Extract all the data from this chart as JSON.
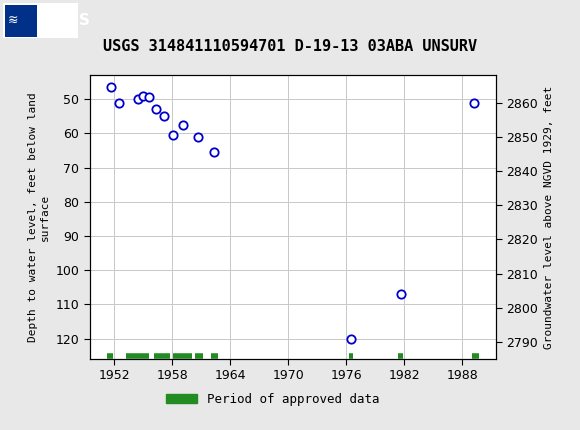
{
  "title": "USGS 314841110594701 D-19-13 03ABA UNSURV",
  "ylabel_left": "Depth to water level, feet below land\nsurface",
  "ylabel_right": "Groundwater level above NGVD 1929, feet",
  "header_color": "#1a6b3c",
  "data_x": [
    1951.7,
    1952.5,
    1954.5,
    1955.0,
    1955.6,
    1956.3,
    1957.2,
    1958.1,
    1959.1,
    1960.7,
    1962.3,
    1976.5,
    1981.7,
    1989.2
  ],
  "data_y": [
    46.5,
    51.0,
    50.0,
    49.0,
    49.5,
    53.0,
    55.0,
    60.5,
    57.5,
    61.0,
    65.5,
    120.0,
    107.0,
    51.0
  ],
  "xlim": [
    1949.5,
    1991.5
  ],
  "ylim_left_bottom": 126,
  "ylim_left_top": 43,
  "ylim_right_bottom": 2785,
  "ylim_right_top": 2868,
  "xticks": [
    1952,
    1958,
    1964,
    1970,
    1976,
    1982,
    1988
  ],
  "yticks_left": [
    50,
    60,
    70,
    80,
    90,
    100,
    110,
    120
  ],
  "yticks_right": [
    2790,
    2800,
    2810,
    2820,
    2830,
    2840,
    2850,
    2860
  ],
  "grid_color": "#c8c8c8",
  "marker_color": "#0000cc",
  "marker_size": 6,
  "approved_periods": [
    [
      1951.3,
      1951.85
    ],
    [
      1953.2,
      1955.6
    ],
    [
      1956.1,
      1957.8
    ],
    [
      1958.1,
      1960.1
    ],
    [
      1960.4,
      1961.2
    ],
    [
      1962.0,
      1962.7
    ],
    [
      1976.3,
      1976.7
    ],
    [
      1981.4,
      1981.9
    ],
    [
      1989.0,
      1989.7
    ]
  ],
  "approved_color": "#228B22",
  "approved_y": 125,
  "background_color": "#e8e8e8",
  "plot_bg": "#ffffff",
  "title_fontsize": 11,
  "tick_labelsize": 9,
  "ylabel_fontsize": 8
}
